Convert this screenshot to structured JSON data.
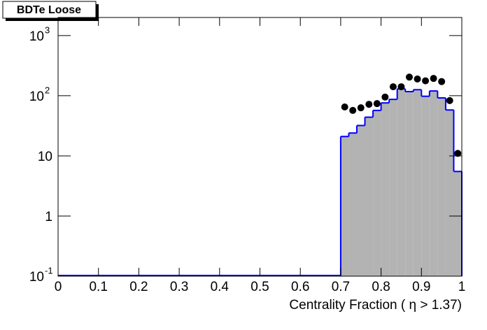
{
  "chart_data": {
    "type": "histogram",
    "title": "BDTe Loose",
    "x_label": "Centrality Fraction ( η > 1.37)",
    "log_y": true,
    "xlim": [
      0,
      1
    ],
    "ylim": [
      0.1,
      2000
    ],
    "xticks": [
      0,
      0.1,
      0.2,
      0.3,
      0.4,
      0.5,
      0.6,
      0.7,
      0.8,
      0.9,
      1
    ],
    "yticks": [
      {
        "value": 0.1,
        "label": "10",
        "exponent": "-1"
      },
      1,
      10,
      {
        "value": 100,
        "label": "10",
        "exponent": "2"
      },
      {
        "value": 1000,
        "label": "10",
        "exponent": "3"
      }
    ],
    "bins": [
      0.7,
      0.72,
      0.74,
      0.76,
      0.78,
      0.8,
      0.82,
      0.84,
      0.86,
      0.88,
      0.9,
      0.92,
      0.94,
      0.96,
      0.98,
      1.0
    ],
    "series": [
      {
        "color": "#0000ff",
        "fill": "#b3b3b3",
        "values": [
          21,
          24,
          32,
          44,
          57,
          76,
          87,
          130,
          117,
          126,
          98,
          120,
          92,
          58,
          5.5
        ]
      }
    ],
    "points": {
      "color": "#000000",
      "x": [
        0.71,
        0.73,
        0.75,
        0.77,
        0.79,
        0.81,
        0.83,
        0.85,
        0.87,
        0.89,
        0.91,
        0.93,
        0.95,
        0.97,
        0.99
      ],
      "values": [
        65,
        57,
        63,
        72,
        74,
        95,
        141,
        141,
        204,
        190,
        177,
        194,
        172,
        83,
        11
      ]
    }
  }
}
